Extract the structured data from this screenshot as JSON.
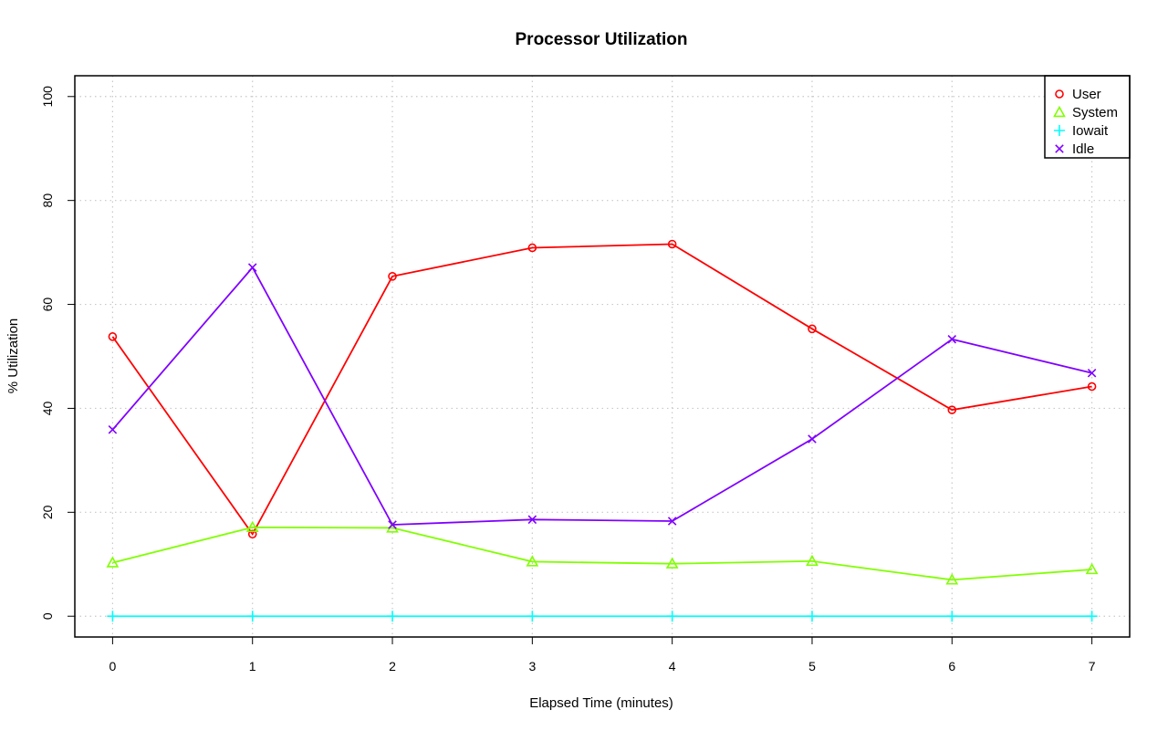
{
  "chart_data": {
    "type": "line",
    "title": "Processor Utilization",
    "xlabel": "Elapsed Time (minutes)",
    "ylabel": "% Utilization",
    "x": [
      0,
      1,
      2,
      3,
      4,
      5,
      6,
      7
    ],
    "xlim": [
      -0.27,
      7.27
    ],
    "ylim": [
      -4,
      104
    ],
    "xticks": [
      0,
      1,
      2,
      3,
      4,
      5,
      6,
      7
    ],
    "yticks": [
      0,
      20,
      40,
      60,
      80,
      100
    ],
    "grid": true,
    "legend_position": "top-right",
    "series": [
      {
        "name": "User",
        "color": "#ff0000",
        "marker": "circle",
        "values": [
          53.8,
          15.8,
          65.4,
          70.9,
          71.6,
          55.3,
          39.7,
          44.2
        ]
      },
      {
        "name": "System",
        "color": "#80ff00",
        "marker": "triangle",
        "values": [
          10.3,
          17.1,
          17.0,
          10.5,
          10.1,
          10.6,
          7.0,
          9.0
        ]
      },
      {
        "name": "Iowait",
        "color": "#00ffff",
        "marker": "plus",
        "values": [
          0,
          0,
          0,
          0,
          0,
          0,
          0,
          0
        ]
      },
      {
        "name": "Idle",
        "color": "#8000ff",
        "marker": "cross",
        "values": [
          35.9,
          67.1,
          17.6,
          18.6,
          18.3,
          34.1,
          53.3,
          46.8
        ]
      }
    ]
  }
}
